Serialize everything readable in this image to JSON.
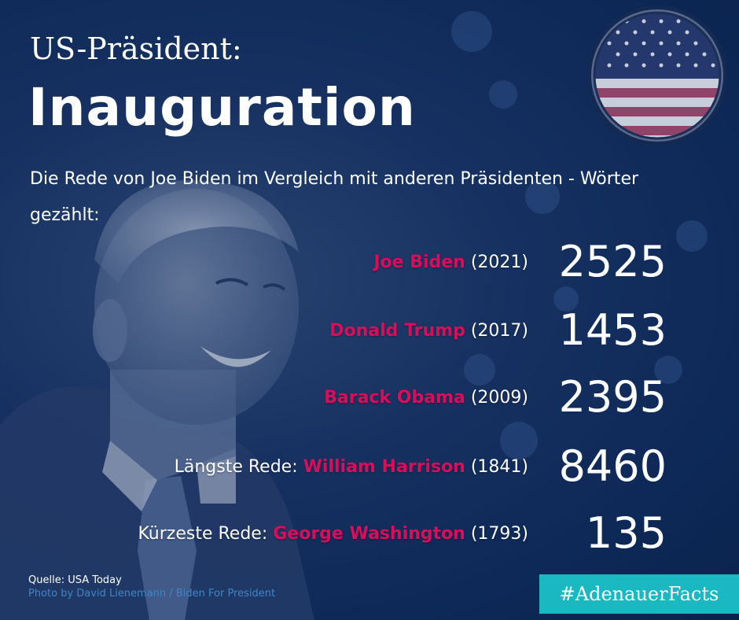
{
  "header": {
    "title_small": "US-Präsident:",
    "title_big": "Inauguration",
    "subtitle": "Die Rede von Joe Biden im Vergleich mit anderen Präsidenten - Wörter gezählt:"
  },
  "rows": [
    {
      "prefix": "",
      "name": "Joe Biden",
      "year": "(2021)",
      "words": "2525"
    },
    {
      "prefix": "",
      "name": "Donald Trump",
      "year": "(2017)",
      "words": "1453"
    },
    {
      "prefix": "",
      "name": "Barack Obama",
      "year": "(2009)",
      "words": "2395"
    },
    {
      "prefix": "Längste Rede: ",
      "name": "William Harrison",
      "year": "(1841)",
      "words": "8460"
    },
    {
      "prefix": "Kürzeste Rede: ",
      "name": "George Washington",
      "year": "(1793)",
      "words": "135"
    }
  ],
  "footer": {
    "source": "Quelle: USA Today",
    "credit": "Photo by David Lienemann / Biden For President",
    "hashtag": "#AdenauerFacts"
  },
  "colors": {
    "background": "#0f2b5a",
    "accent_name": "#d90e5b",
    "hashtag_bg": "#1ab8c0"
  },
  "icons": {
    "flag": "us-flag-icon"
  }
}
